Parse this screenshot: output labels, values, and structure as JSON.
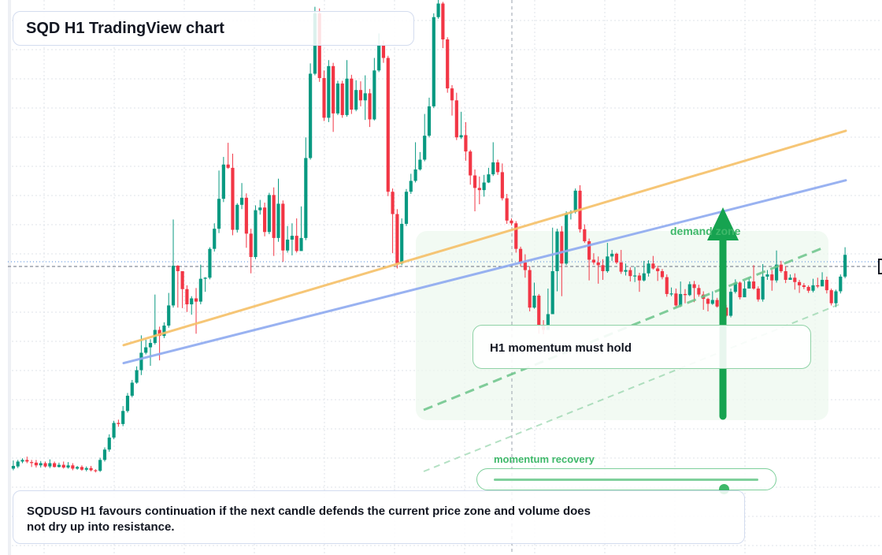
{
  "title": "SQD H1 TradingView chart",
  "note": "SQDUSD H1 favours continuation if the next candle defends the current price zone and volume does not dry up into resistance.",
  "callout": "H1 momentum must hold",
  "zone_label": "demand zone",
  "momentum": {
    "label": "momentum recovery",
    "level": 0.87
  },
  "colors": {
    "up": "#089981",
    "down": "#f23645",
    "support_line": "#f6c068",
    "trend_line": "#8eaaf0",
    "accent_green": "#3fb86a",
    "zone_fill": "#eef8ef",
    "grid": "#dfe3ea"
  },
  "chart_data": {
    "type": "candlestick",
    "symbol": "SQDUSD",
    "timeframe": "H1",
    "title": "SQD H1 TradingView chart",
    "grid": true,
    "ylim": [
      0,
      100
    ],
    "candles": [
      [
        15.3,
        15.8,
        16.8,
        15.0
      ],
      [
        15.7,
        16.6,
        16.9,
        15.4
      ],
      [
        16.6,
        16.9,
        17.2,
        16.3
      ],
      [
        16.9,
        16.6,
        17.5,
        16.3
      ],
      [
        16.5,
        16.4,
        16.9,
        15.6
      ],
      [
        16.4,
        15.9,
        16.9,
        15.5
      ],
      [
        15.9,
        16.3,
        16.7,
        15.5
      ],
      [
        16.3,
        15.7,
        16.6,
        15.5
      ],
      [
        15.7,
        16.3,
        17.0,
        15.4
      ],
      [
        16.3,
        15.6,
        16.6,
        15.5
      ],
      [
        15.6,
        16.0,
        16.4,
        15.5
      ],
      [
        16.0,
        15.5,
        16.6,
        15.3
      ],
      [
        15.5,
        15.9,
        16.5,
        15.3
      ],
      [
        15.9,
        15.3,
        16.3,
        15.0
      ],
      [
        15.3,
        15.6,
        15.8,
        15.1
      ],
      [
        15.6,
        15.1,
        15.9,
        14.9
      ],
      [
        15.1,
        15.4,
        15.7,
        14.8
      ],
      [
        15.4,
        15.0,
        15.8,
        14.8
      ],
      [
        15.0,
        14.9,
        15.2,
        14.6
      ],
      [
        14.9,
        16.9,
        17.3,
        14.7
      ],
      [
        16.9,
        18.8,
        19.2,
        16.6
      ],
      [
        18.8,
        21.0,
        21.6,
        18.4
      ],
      [
        21.0,
        23.7,
        24.1,
        20.7
      ],
      [
        23.7,
        23.5,
        24.3,
        23.0
      ],
      [
        23.5,
        25.9,
        26.8,
        23.1
      ],
      [
        25.9,
        28.7,
        29.2,
        25.6
      ],
      [
        28.7,
        31.1,
        31.6,
        28.4
      ],
      [
        31.1,
        33.4,
        34.1,
        30.9
      ],
      [
        33.4,
        36.6,
        39.8,
        32.5
      ],
      [
        36.6,
        37.6,
        39.0,
        36.3
      ],
      [
        37.6,
        38.4,
        39.1,
        34.2
      ],
      [
        38.4,
        40.8,
        47.3,
        38.1
      ],
      [
        40.8,
        39.7,
        41.4,
        35.2
      ],
      [
        39.7,
        41.6,
        42.2,
        39.3
      ],
      [
        41.6,
        45.3,
        47.6,
        41.2
      ],
      [
        45.3,
        52.6,
        61.1,
        44.9
      ],
      [
        52.6,
        51.6,
        52.7,
        44.9
      ],
      [
        51.6,
        48.3,
        50.3,
        44.8
      ],
      [
        48.3,
        45.5,
        49.0,
        44.1
      ],
      [
        45.5,
        46.6,
        47.0,
        43.6
      ],
      [
        46.6,
        46.0,
        48.5,
        40.1
      ],
      [
        46.0,
        50.2,
        52.8,
        45.5
      ],
      [
        50.2,
        50.4,
        50.5,
        47.8
      ],
      [
        50.4,
        55.7,
        56.0,
        50.1
      ],
      [
        55.7,
        59.4,
        60.4,
        55.2
      ],
      [
        59.4,
        64.9,
        70.1,
        58.6
      ],
      [
        64.9,
        71.2,
        72.6,
        64.3
      ],
      [
        71.2,
        70.6,
        75.2,
        70.4
      ],
      [
        70.6,
        59.2,
        73.2,
        58.2
      ],
      [
        59.2,
        63.8,
        64.1,
        58.7
      ],
      [
        63.8,
        65.1,
        67.8,
        63.0
      ],
      [
        65.1,
        58.5,
        65.9,
        55.9
      ],
      [
        58.5,
        54.2,
        59.4,
        51.2
      ],
      [
        54.2,
        62.8,
        63.7,
        53.8
      ],
      [
        62.8,
        63.3,
        64.7,
        62.0
      ],
      [
        63.3,
        58.8,
        64.2,
        58.0
      ],
      [
        58.8,
        65.6,
        66.0,
        58.4
      ],
      [
        65.6,
        57.7,
        67.0,
        54.4
      ],
      [
        57.7,
        64.0,
        68.6,
        57.0
      ],
      [
        64.0,
        55.4,
        64.6,
        53.3
      ],
      [
        55.4,
        57.4,
        59.9,
        55.0
      ],
      [
        57.4,
        58.1,
        60.4,
        54.5
      ],
      [
        58.1,
        55.3,
        61.3,
        55.0
      ],
      [
        55.3,
        57.7,
        63.5,
        56.9
      ],
      [
        57.7,
        72.4,
        76.2,
        57.3
      ],
      [
        72.4,
        87.9,
        89.8,
        72.1
      ],
      [
        87.9,
        99.0,
        100.2,
        87.6
      ],
      [
        99.0,
        87.1,
        99.9,
        86.4
      ],
      [
        87.1,
        79.8,
        88.5,
        79.2
      ],
      [
        79.8,
        89.3,
        90.4,
        79.0
      ],
      [
        89.3,
        80.6,
        89.9,
        77.2
      ],
      [
        80.6,
        86.1,
        86.6,
        80.3
      ],
      [
        86.1,
        80.3,
        86.6,
        79.8
      ],
      [
        80.3,
        87.0,
        90.4,
        80.0
      ],
      [
        87.0,
        81.3,
        87.7,
        80.5
      ],
      [
        81.3,
        84.9,
        86.7,
        81.0
      ],
      [
        84.9,
        83.0,
        86.5,
        81.9
      ],
      [
        83.0,
        84.3,
        87.6,
        79.4
      ],
      [
        84.3,
        79.5,
        85.1,
        78.1
      ],
      [
        79.5,
        88.5,
        90.8,
        79.3
      ],
      [
        88.5,
        93.1,
        95.3,
        88.2
      ],
      [
        93.1,
        90.8,
        94.0,
        89.9
      ],
      [
        90.8,
        66.2,
        91.2,
        65.4
      ],
      [
        66.2,
        62.1,
        66.8,
        54.9
      ],
      [
        62.1,
        53.0,
        63.0,
        52.1
      ],
      [
        53.0,
        60.3,
        61.3,
        52.7
      ],
      [
        60.3,
        66.2,
        66.7,
        59.9
      ],
      [
        66.2,
        68.2,
        69.5,
        65.8
      ],
      [
        68.2,
        70.3,
        75.3,
        67.9
      ],
      [
        70.3,
        72.1,
        73.5,
        70.1
      ],
      [
        72.1,
        76.5,
        80.5,
        71.8
      ],
      [
        76.5,
        81.9,
        83.5,
        76.2
      ],
      [
        81.9,
        98.3,
        99.0,
        81.6
      ],
      [
        98.3,
        100.8,
        102.2,
        98.0
      ],
      [
        100.8,
        94.2,
        101.1,
        92.6
      ],
      [
        94.2,
        85.2,
        94.6,
        84.4
      ],
      [
        85.2,
        83.0,
        85.8,
        80.2
      ],
      [
        83.0,
        76.2,
        84.4,
        75.7
      ],
      [
        76.2,
        76.6,
        80.9,
        75.9
      ],
      [
        76.6,
        73.6,
        79.0,
        71.9
      ],
      [
        73.6,
        69.2,
        73.9,
        67.5
      ],
      [
        69.2,
        66.9,
        70.3,
        62.6
      ],
      [
        66.9,
        66.5,
        69.0,
        63.9
      ],
      [
        66.5,
        67.9,
        69.3,
        65.3
      ],
      [
        67.9,
        69.4,
        70.6,
        67.8
      ],
      [
        69.4,
        71.6,
        75.3,
        69.1
      ],
      [
        71.6,
        69.8,
        72.1,
        69.3
      ],
      [
        69.8,
        65.0,
        71.4,
        64.6
      ],
      [
        65.0,
        60.9,
        65.8,
        60.3
      ],
      [
        60.9,
        60.4,
        61.3,
        60.0
      ],
      [
        60.4,
        55.7,
        60.8,
        55.0
      ],
      [
        55.7,
        53.2,
        56.1,
        52.5
      ],
      [
        53.2,
        51.8,
        54.7,
        50.4
      ],
      [
        51.8,
        44.9,
        52.5,
        44.2
      ],
      [
        44.9,
        47.1,
        49.5,
        44.7
      ],
      [
        47.1,
        41.7,
        47.4,
        40.1
      ],
      [
        41.7,
        40.8,
        42.6,
        40.0
      ],
      [
        40.8,
        43.7,
        48.4,
        43.4
      ],
      [
        43.7,
        51.6,
        59.6,
        51.3
      ],
      [
        51.6,
        58.9,
        59.4,
        47.9
      ],
      [
        58.9,
        53.0,
        59.9,
        47.0
      ],
      [
        53.0,
        62.2,
        62.6,
        52.7
      ],
      [
        62.2,
        62.5,
        62.8,
        61.1
      ],
      [
        62.5,
        66.4,
        66.8,
        62.2
      ],
      [
        66.4,
        59.3,
        67.4,
        58.7
      ],
      [
        59.3,
        57.1,
        60.2,
        56.8
      ],
      [
        57.1,
        53.7,
        57.6,
        49.9
      ],
      [
        53.7,
        53.2,
        54.9,
        52.8
      ],
      [
        53.2,
        52.7,
        54.3,
        49.3
      ],
      [
        52.7,
        51.6,
        53.8,
        50.0
      ],
      [
        51.6,
        54.3,
        56.8,
        51.3
      ],
      [
        54.3,
        54.8,
        55.5,
        53.5
      ],
      [
        54.8,
        53.2,
        55.0,
        52.9
      ],
      [
        53.2,
        51.5,
        55.5,
        51.1
      ],
      [
        51.5,
        51.8,
        53.0,
        50.8
      ],
      [
        51.8,
        50.7,
        52.3,
        49.7
      ],
      [
        50.7,
        50.8,
        52.4,
        49.6
      ],
      [
        50.8,
        49.9,
        51.3,
        47.8
      ],
      [
        49.9,
        51.2,
        53.5,
        49.7
      ],
      [
        51.2,
        53.0,
        53.6,
        50.6
      ],
      [
        53.0,
        52.1,
        54.4,
        51.9
      ],
      [
        52.1,
        51.6,
        52.6,
        49.8
      ],
      [
        51.6,
        50.5,
        52.0,
        50.1
      ],
      [
        50.5,
        47.4,
        51.0,
        46.9
      ],
      [
        47.4,
        47.5,
        48.6,
        47.0
      ],
      [
        47.5,
        45.3,
        48.4,
        45.0
      ],
      [
        45.3,
        47.4,
        49.7,
        45.0
      ],
      [
        47.4,
        47.2,
        48.3,
        45.7
      ],
      [
        47.2,
        49.2,
        49.7,
        47.0
      ],
      [
        49.2,
        48.5,
        49.8,
        45.9
      ],
      [
        48.5,
        47.3,
        49.1,
        46.9
      ],
      [
        47.3,
        46.5,
        47.9,
        44.5
      ],
      [
        46.5,
        45.6,
        46.7,
        44.2
      ],
      [
        45.6,
        46.3,
        47.9,
        45.4
      ],
      [
        46.3,
        45.1,
        46.7,
        44.9
      ],
      [
        45.1,
        44.9,
        45.3,
        44.5
      ],
      [
        44.9,
        43.4,
        45.4,
        43.2
      ],
      [
        43.4,
        47.8,
        48.4,
        43.1
      ],
      [
        47.8,
        49.5,
        50.1,
        47.5
      ],
      [
        49.5,
        46.8,
        49.7,
        46.4
      ],
      [
        46.8,
        48.4,
        49.8,
        48.0
      ],
      [
        48.4,
        49.7,
        50.4,
        49.3
      ],
      [
        49.7,
        48.4,
        52.7,
        48.2
      ],
      [
        48.4,
        46.4,
        48.8,
        46.0
      ],
      [
        46.4,
        50.6,
        52.9,
        46.0
      ],
      [
        50.6,
        51.0,
        51.8,
        50.0
      ],
      [
        51.0,
        49.9,
        51.8,
        48.0
      ],
      [
        49.9,
        52.8,
        55.4,
        49.5
      ],
      [
        52.8,
        51.6,
        53.5,
        51.3
      ],
      [
        51.6,
        50.0,
        52.5,
        49.4
      ],
      [
        50.0,
        50.4,
        51.0,
        50.0
      ],
      [
        50.4,
        49.6,
        51.2,
        48.2
      ],
      [
        49.6,
        49.0,
        50.0,
        47.6
      ],
      [
        49.0,
        48.7,
        49.4,
        48.3
      ],
      [
        48.7,
        48.0,
        49.0,
        47.6
      ],
      [
        48.0,
        49.0,
        50.2,
        47.7
      ],
      [
        49.0,
        48.8,
        50.4,
        48.5
      ],
      [
        48.8,
        50.0,
        51.4,
        49.6
      ],
      [
        50.0,
        48.1,
        50.6,
        47.5
      ],
      [
        48.1,
        45.7,
        48.4,
        45.3
      ],
      [
        45.7,
        47.9,
        48.2,
        45.0
      ],
      [
        47.9,
        50.6,
        51.0,
        47.5
      ],
      [
        50.6,
        54.6,
        56.0,
        50.3
      ]
    ],
    "lines": [
      {
        "name": "",
        "color": "#f6c068",
        "from": [
          0.0,
          38.0
        ],
        "to": [
          1.0,
          77.4
        ]
      },
      {
        "name": "",
        "color": "#8eaaf0",
        "from": [
          0.0,
          34.7
        ],
        "to": [
          1.0,
          68.3
        ]
      }
    ],
    "annotations": [
      "demand zone",
      "H1 momentum must hold",
      "momentum recovery"
    ]
  }
}
